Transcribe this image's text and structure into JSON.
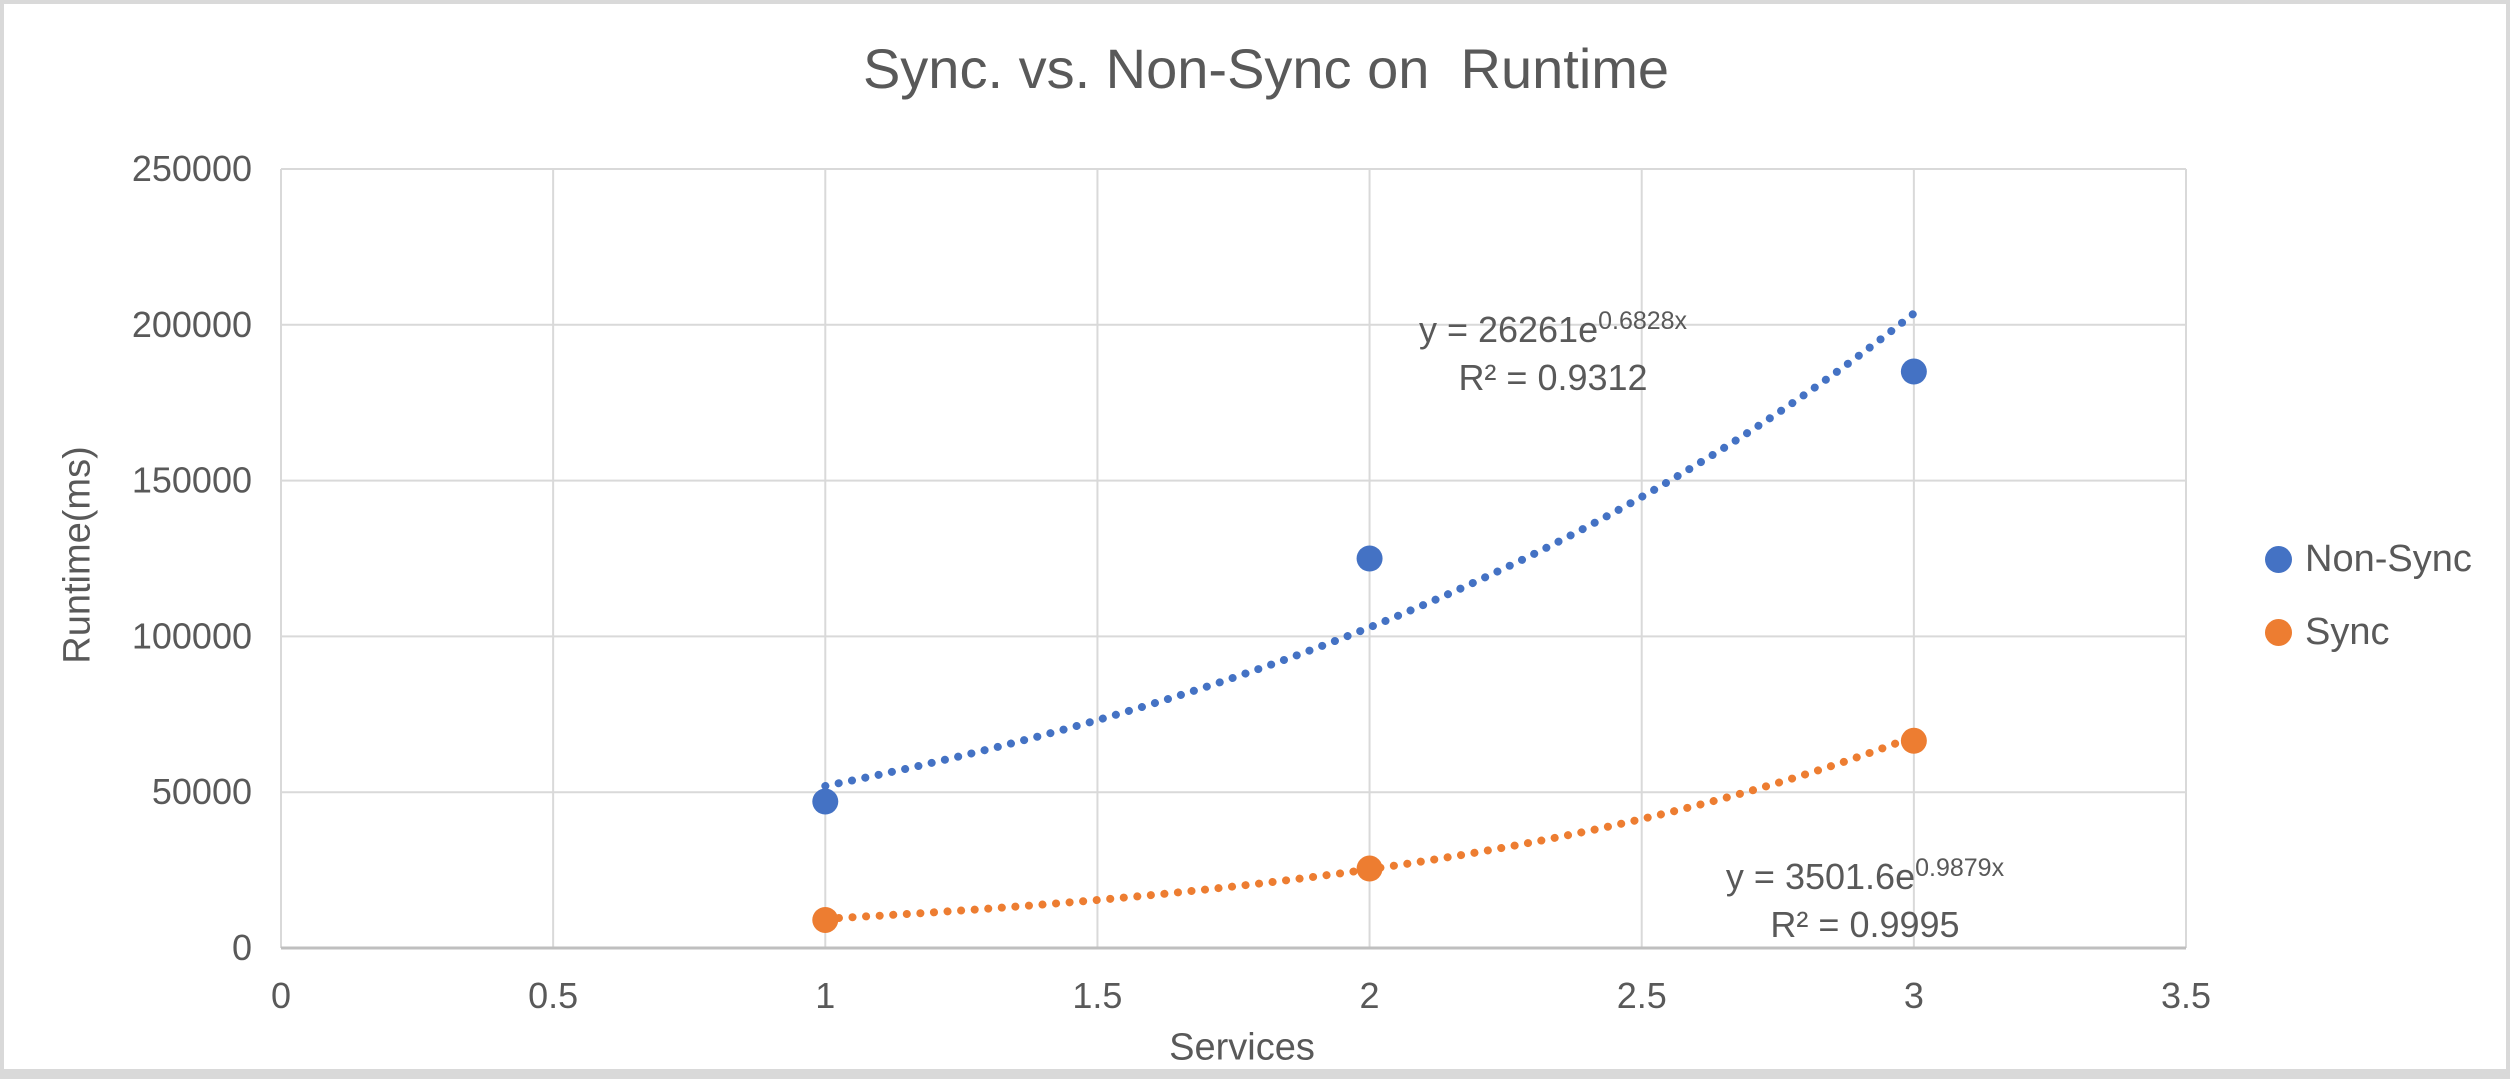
{
  "title": "Sync. vs. Non-Sync on  Runtime",
  "colors": {
    "non_sync": "#4472C4",
    "sync": "#ED7D31",
    "text": "#595959",
    "gridline": "#D9D9D9",
    "axis_line": "#BFBFBF",
    "frame": "#D9D9D9",
    "background": "#FFFFFF"
  },
  "chart_data": {
    "type": "scatter",
    "title": "Sync. vs. Non-Sync on  Runtime",
    "xlabel": "Services",
    "ylabel": "Runtime(ms)",
    "xlim": [
      0,
      3.5
    ],
    "ylim": [
      0,
      250000
    ],
    "xticks": [
      0,
      0.5,
      1,
      1.5,
      2,
      2.5,
      3,
      3.5
    ],
    "xtick_labels": [
      "0",
      "0.5",
      "1",
      "1.5",
      "2",
      "2.5",
      "3",
      "3.5"
    ],
    "yticks": [
      0,
      50000,
      100000,
      150000,
      200000,
      250000
    ],
    "ytick_labels": [
      "0",
      "50000",
      "100000",
      "150000",
      "200000",
      "250000"
    ],
    "grid": true,
    "legend_position": "right",
    "series": [
      {
        "name": "Non-Sync",
        "color": "#4472C4",
        "points": [
          [
            1,
            47000
          ],
          [
            2,
            125000
          ],
          [
            3,
            185000
          ]
        ],
        "trendline": {
          "type": "exponential",
          "a": 26261,
          "b": 0.6828,
          "r2": 0.9312,
          "range": [
            1,
            3
          ],
          "equation_base": "y = 26261e",
          "equation_exponent": "0.6828x",
          "r2_label": "R² = 0.9312"
        }
      },
      {
        "name": "Sync",
        "color": "#ED7D31",
        "points": [
          [
            1,
            9000
          ],
          [
            2,
            25500
          ],
          [
            3,
            66500
          ]
        ],
        "trendline": {
          "type": "exponential",
          "a": 3501.6,
          "b": 0.9879,
          "r2": 0.9995,
          "range": [
            1,
            3
          ],
          "equation_base": "y = 3501.6e",
          "equation_exponent": "0.9879x",
          "r2_label": "R² = 0.9995"
        }
      }
    ]
  }
}
